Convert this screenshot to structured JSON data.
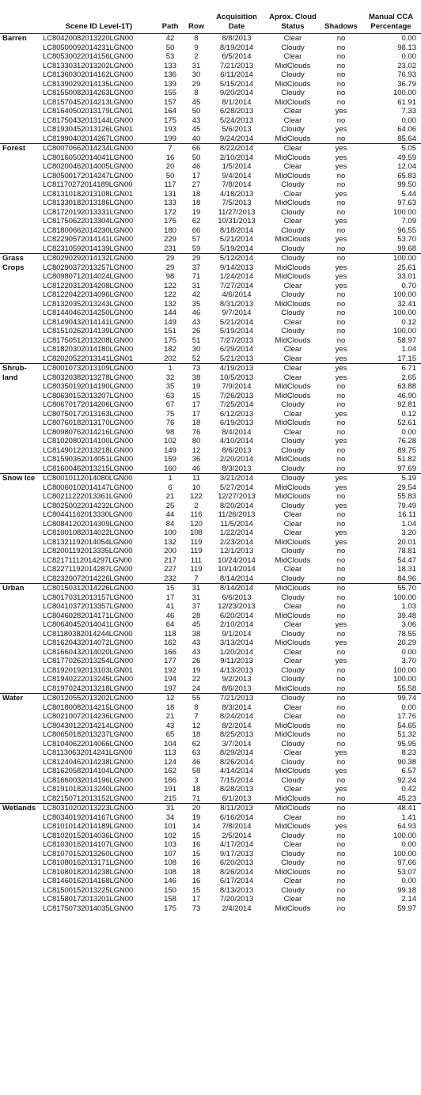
{
  "headers": {
    "scene": "Scene ID Level-1T)",
    "path": "Path",
    "row": "Row",
    "date": "Acquisition Date",
    "cloud": "Aprox. Cloud Status",
    "shadows": "Shadows",
    "cca": "Manual CCA Percentage"
  },
  "groups": [
    {
      "name": "Barren",
      "rows": [
        [
          "LC80420082013220LGN00",
          "42",
          "8",
          "8/8/2013",
          "Clear",
          "no",
          "0.00"
        ],
        [
          "LC80500092014231LGN00",
          "50",
          "9",
          "8/19/2014",
          "Cloudy",
          "no",
          "98.13"
        ],
        [
          "LC80530022014156LGN00",
          "53",
          "2",
          "6/5/2014",
          "Clear",
          "no",
          "0.00"
        ],
        [
          "LC81330312013202LGN00",
          "133",
          "31",
          "7/21/2013",
          "MidClouds",
          "no",
          "23.02"
        ],
        [
          "LC81360302014162LGN00",
          "136",
          "30",
          "6/11/2014",
          "Cloudy",
          "no",
          "76.93"
        ],
        [
          "LC81390292014135LGN00",
          "139",
          "29",
          "5/15/2014",
          "MidClouds",
          "no",
          "36.79"
        ],
        [
          "LC81550082014263LGN00",
          "155",
          "8",
          "9/20/2014",
          "Cloudy",
          "no",
          "100.00"
        ],
        [
          "LC81570452014213LGN00",
          "157",
          "45",
          "8/1/2014",
          "MidClouds",
          "no",
          "61.91"
        ],
        [
          "LC81640502013179LGN01",
          "164",
          "50",
          "6/28/2013",
          "Clear",
          "yes",
          "7.33"
        ],
        [
          "LC81750432013144LGN00",
          "175",
          "43",
          "5/24/2013",
          "Clear",
          "no",
          "0.00"
        ],
        [
          "LC81930452013126LGN01",
          "193",
          "45",
          "5/6/2013",
          "Cloudy",
          "yes",
          "64.06"
        ],
        [
          "LC81990402014267LGN00",
          "199",
          "40",
          "9/24/2014",
          "MidClouds",
          "no",
          "85.64"
        ]
      ]
    },
    {
      "name": "Forest",
      "rows": [
        [
          "LC80070662014234LGN00",
          "7",
          "66",
          "8/22/2014",
          "Clear",
          "yes",
          "5.05"
        ],
        [
          "LC80160502014041LGN00",
          "16",
          "50",
          "2/10/2014",
          "MidClouds",
          "yes",
          "49.59"
        ],
        [
          "LC80200462014005LGN00",
          "20",
          "46",
          "1/5/2014",
          "Clear",
          "yes",
          "12.04"
        ],
        [
          "LC80500172014247LGN00",
          "50",
          "17",
          "9/4/2014",
          "MidClouds",
          "no",
          "65.83"
        ],
        [
          "LC81170272014189LGN00",
          "117",
          "27",
          "7/8/2014",
          "Cloudy",
          "no",
          "99.50"
        ],
        [
          "LC81310182013108LGN01",
          "131",
          "18",
          "4/18/2013",
          "Clear",
          "yes",
          "5.44"
        ],
        [
          "LC81330182013186LGN00",
          "133",
          "18",
          "7/5/2013",
          "MidClouds",
          "no",
          "97.63"
        ],
        [
          "LC81720192013331LGN00",
          "172",
          "19",
          "11/27/2013",
          "Cloudy",
          "no",
          "100.00"
        ],
        [
          "LC81750622013304LGN00",
          "175",
          "62",
          "10/31/2013",
          "Clear",
          "yes",
          "7.09"
        ],
        [
          "LC81800662014230LGN00",
          "180",
          "66",
          "8/18/2014",
          "Cloudy",
          "no",
          "96.55"
        ],
        [
          "LC82290572014141LGN00",
          "229",
          "57",
          "5/21/2014",
          "MidClouds",
          "yes",
          "53.70"
        ],
        [
          "LC82310592014139LGN00",
          "231",
          "59",
          "5/19/2014",
          "Cloudy",
          "no",
          "99.68"
        ]
      ]
    },
    {
      "name": "Grass Crops",
      "rows": [
        [
          "LC80290292014132LGN00",
          "29",
          "29",
          "5/12/2014",
          "Cloudy",
          "no",
          "100.00"
        ],
        [
          "LC80290372013257LGN00",
          "29",
          "37",
          "9/14/2013",
          "MidClouds",
          "yes",
          "25.61"
        ],
        [
          "LC80980712014024LGN00",
          "98",
          "71",
          "1/24/2014",
          "MidClouds",
          "yes",
          "33.01"
        ],
        [
          "LC81220312014208LGN00",
          "122",
          "31",
          "7/27/2014",
          "Clear",
          "yes",
          "0.70"
        ],
        [
          "LC81220422014096LGN00",
          "122",
          "42",
          "4/6/2014",
          "Cloudy",
          "no",
          "100.00"
        ],
        [
          "LC81320352013243LGN00",
          "132",
          "35",
          "8/31/2013",
          "MidClouds",
          "no",
          "32.41"
        ],
        [
          "LC81440462014250LGN00",
          "144",
          "46",
          "9/7/2014",
          "Cloudy",
          "no",
          "100.00"
        ],
        [
          "LC81490432014141LGN00",
          "149",
          "43",
          "5/21/2014",
          "Clear",
          "no",
          "0.12"
        ],
        [
          "LC81510262014139LGN00",
          "151",
          "26",
          "5/19/2014",
          "Cloudy",
          "no",
          "100.00"
        ],
        [
          "LC81750512013208LGN00",
          "175",
          "51",
          "7/27/2013",
          "MidClouds",
          "no",
          "58.97"
        ],
        [
          "LC81820302014180LGN00",
          "182",
          "30",
          "6/29/2014",
          "Clear",
          "yes",
          "1.04"
        ],
        [
          "LC82020522013141LGN01",
          "202",
          "52",
          "5/21/2013",
          "Clear",
          "yes",
          "17.15"
        ]
      ]
    },
    {
      "name": "Shrub-land",
      "rows": [
        [
          "LC80010732013109LGN00",
          "1",
          "73",
          "4/19/2013",
          "Clear",
          "yes",
          "6.71"
        ],
        [
          "LC80320382013278LGN00",
          "32",
          "38",
          "10/5/2013",
          "Clear",
          "yes",
          "2.65"
        ],
        [
          "LC80350192014190LGN00",
          "35",
          "19",
          "7/9/2014",
          "MidClouds",
          "no",
          "63.88"
        ],
        [
          "LC80630152013207LGN00",
          "63",
          "15",
          "7/26/2013",
          "MidClouds",
          "no",
          "46.90"
        ],
        [
          "LC80670172014206LGN00",
          "67",
          "17",
          "7/25/2014",
          "Cloudy",
          "no",
          "92.81"
        ],
        [
          "LC80750172013163LGN00",
          "75",
          "17",
          "6/12/2013",
          "Clear",
          "yes",
          "0.12"
        ],
        [
          "LC80760182013170LGN00",
          "76",
          "18",
          "6/19/2013",
          "MidClouds",
          "no",
          "52.61"
        ],
        [
          "LC80980762014216LGN00",
          "98",
          "76",
          "8/4/2014",
          "Clear",
          "no",
          "0.00"
        ],
        [
          "LC81020802014100LGN00",
          "102",
          "80",
          "4/10/2014",
          "Cloudy",
          "yes",
          "76.28"
        ],
        [
          "LC81490122013218LGN00",
          "149",
          "12",
          "8/6/2013",
          "Cloudy",
          "no",
          "89.75"
        ],
        [
          "LC81590362014051LGN00",
          "159",
          "36",
          "2/20/2014",
          "MidClouds",
          "no",
          "51.82"
        ],
        [
          "LC81600462013215LGN00",
          "160",
          "46",
          "8/3/2013",
          "Cloudy",
          "no",
          "97.69"
        ]
      ]
    },
    {
      "name": "Snow Ice",
      "rows": [
        [
          "LC80010112014080LGN00",
          "1",
          "11",
          "3/21/2014",
          "Cloudy",
          "yes",
          "5.19"
        ],
        [
          "LC80060102014147LGN00",
          "6",
          "10",
          "5/27/2014",
          "MidClouds",
          "yes",
          "29.54"
        ],
        [
          "LC80211222013361LGN00",
          "21",
          "122",
          "12/27/2013",
          "MidClouds",
          "no",
          "55.83"
        ],
        [
          "LC80250022014232LGN00",
          "25",
          "2",
          "8/20/2014",
          "Cloudy",
          "yes",
          "79.49"
        ],
        [
          "LC80441162013330LGN00",
          "44",
          "116",
          "11/26/2013",
          "Clear",
          "no",
          "16.11"
        ],
        [
          "LC80841202014309LGN00",
          "84",
          "120",
          "11/5/2014",
          "Clear",
          "no",
          "1.04"
        ],
        [
          "LC81001082014022LGN00",
          "100",
          "108",
          "1/22/2014",
          "Clear",
          "yes",
          "3.20"
        ],
        [
          "LC81321192014054LGN00",
          "132",
          "119",
          "2/23/2014",
          "MidClouds",
          "yes",
          "20.01"
        ],
        [
          "LC82001192013335LGN00",
          "200",
          "119",
          "12/1/2013",
          "Cloudy",
          "no",
          "78.81"
        ],
        [
          "LC82171112014297LGN00",
          "217",
          "111",
          "10/24/2014",
          "MidClouds",
          "no",
          "54.47"
        ],
        [
          "LC82271192014287LGN00",
          "227",
          "119",
          "10/14/2014",
          "Clear",
          "no",
          "18.31"
        ],
        [
          "LC82320072014226LGN00",
          "232",
          "7",
          "8/14/2014",
          "Cloudy",
          "no",
          "84.96"
        ]
      ]
    },
    {
      "name": "Urban",
      "rows": [
        [
          "LC80150312014226LGN00",
          "15",
          "31",
          "8/14/2014",
          "MidClouds",
          "no",
          "55.70"
        ],
        [
          "LC80170312013157LGN00",
          "17",
          "31",
          "6/6/2013",
          "Cloudy",
          "no",
          "100.00"
        ],
        [
          "LC80410372013357LGN00",
          "41",
          "37",
          "12/23/2013",
          "Clear",
          "no",
          "1.03"
        ],
        [
          "LC80460282014171LGN00",
          "46",
          "28",
          "6/20/2014",
          "MidClouds",
          "no",
          "39.48"
        ],
        [
          "LC80640452014041LGN00",
          "64",
          "45",
          "2/10/2014",
          "Clear",
          "yes",
          "3.06"
        ],
        [
          "LC81180382014244LGN00",
          "118",
          "38",
          "9/1/2014",
          "Cloudy",
          "no",
          "78.55"
        ],
        [
          "LC81620432014072LGN00",
          "162",
          "43",
          "3/13/2014",
          "MidClouds",
          "yes",
          "20.29"
        ],
        [
          "LC81660432014020LGN00",
          "166",
          "43",
          "1/20/2014",
          "Clear",
          "no",
          "0.00"
        ],
        [
          "LC81770262013254LGN00",
          "177",
          "26",
          "9/11/2013",
          "Clear",
          "yes",
          "3.70"
        ],
        [
          "LC81920192013103LGN01",
          "192",
          "19",
          "4/13/2013",
          "Cloudy",
          "no",
          "100.00"
        ],
        [
          "LC81940222013245LGN00",
          "194",
          "22",
          "9/2/2013",
          "Cloudy",
          "no",
          "100.00"
        ],
        [
          "LC81970242013218LGN00",
          "197",
          "24",
          "8/6/2013",
          "MidClouds",
          "no",
          "55.58"
        ]
      ]
    },
    {
      "name": "Water",
      "rows": [
        [
          "LC80120552013202LGN00",
          "12",
          "55",
          "7/21/2013",
          "Cloudy",
          "no",
          "99.74"
        ],
        [
          "LC80180082014215LGN00",
          "18",
          "8",
          "8/3/2014",
          "Clear",
          "no",
          "0.00"
        ],
        [
          "LC80210072014236LGN00",
          "21",
          "7",
          "8/24/2014",
          "Clear",
          "no",
          "17.76"
        ],
        [
          "LC80430122014214LGN00",
          "43",
          "12",
          "8/2/2014",
          "MidClouds",
          "no",
          "54.65"
        ],
        [
          "LC80650182013237LGN00",
          "65",
          "18",
          "8/25/2013",
          "MidClouds",
          "no",
          "51.32"
        ],
        [
          "LC81040622014066LGN00",
          "104",
          "62",
          "3/7/2014",
          "Cloudy",
          "no",
          "95.95"
        ],
        [
          "LC81130632014241LGN00",
          "113",
          "63",
          "8/29/2014",
          "Clear",
          "yes",
          "8.23"
        ],
        [
          "LC81240462014238LGN00",
          "124",
          "46",
          "8/26/2014",
          "Cloudy",
          "no",
          "90.38"
        ],
        [
          "LC81620582014104LGN00",
          "162",
          "58",
          "4/14/2014",
          "MidClouds",
          "yes",
          "6.57"
        ],
        [
          "LC81660032014196LGN00",
          "166",
          "3",
          "7/15/2014",
          "Cloudy",
          "no",
          "92.24"
        ],
        [
          "LC81910182013240LGN00",
          "191",
          "18",
          "8/28/2013",
          "Clear",
          "yes",
          "0.42"
        ],
        [
          "LC82150712013152LGN00",
          "215",
          "71",
          "6/1/2013",
          "MidClouds",
          "no",
          "45.23"
        ]
      ]
    },
    {
      "name": "Wetlands",
      "rows": [
        [
          "LC80310202013223LGN00",
          "31",
          "20",
          "8/11/2013",
          "MidClouds",
          "no",
          "48.41"
        ],
        [
          "LC80340192014167LGN00",
          "34",
          "19",
          "6/16/2014",
          "Clear",
          "no",
          "1.41"
        ],
        [
          "LC81010142014189LGN00",
          "101",
          "14",
          "7/8/2014",
          "MidClouds",
          "yes",
          "64.93"
        ],
        [
          "LC81020152014036LGN00",
          "102",
          "15",
          "2/5/2014",
          "Cloudy",
          "no",
          "100.00"
        ],
        [
          "LC81030162014107LGN00",
          "103",
          "16",
          "4/17/2014",
          "Clear",
          "no",
          "0.00"
        ],
        [
          "LC81070152013260LGN00",
          "107",
          "15",
          "9/17/2013",
          "Cloudy",
          "no",
          "100.00"
        ],
        [
          "LC81080162013171LGN00",
          "108",
          "16",
          "6/20/2013",
          "Cloudy",
          "no",
          "97.66"
        ],
        [
          "LC81080182014238LGN00",
          "108",
          "18",
          "8/26/2014",
          "MidClouds",
          "no",
          "53.07"
        ],
        [
          "LC81460162014168LGN00",
          "146",
          "16",
          "6/17/2014",
          "Clear",
          "no",
          "0.00"
        ],
        [
          "LC81500152013225LGN00",
          "150",
          "15",
          "8/13/2013",
          "Cloudy",
          "no",
          "99.18"
        ],
        [
          "LC81580172013201LGN00",
          "158",
          "17",
          "7/20/2013",
          "Clear",
          "no",
          "2.14"
        ],
        [
          "LC81750732014035LGN00",
          "175",
          "73",
          "2/4/2014",
          "MidClouds",
          "no",
          "59.97"
        ]
      ]
    }
  ]
}
